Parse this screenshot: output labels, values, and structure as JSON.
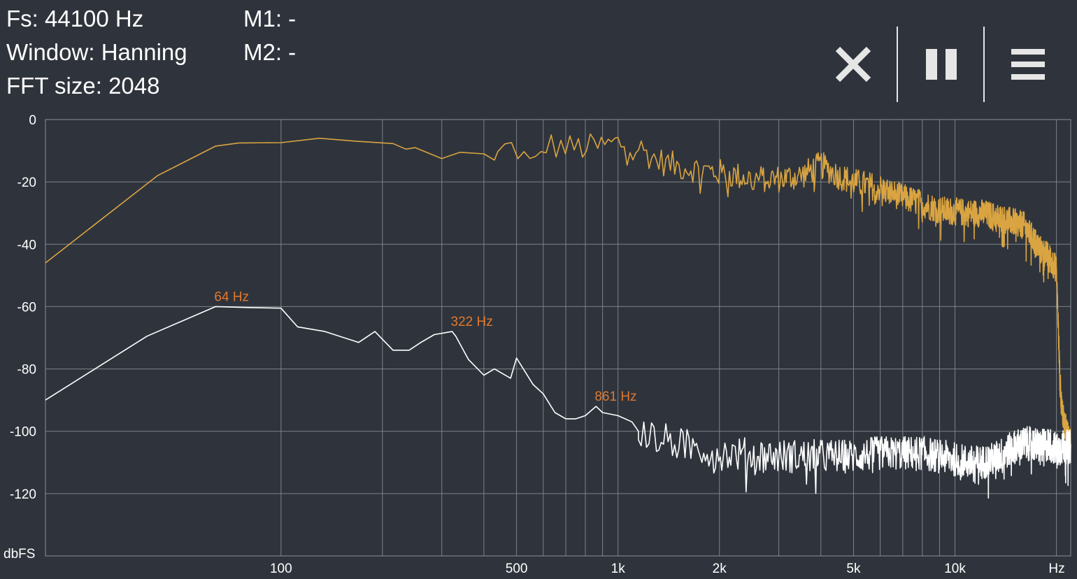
{
  "info": {
    "fs": "Fs: 44100 Hz",
    "window": "Window: Hanning",
    "fft_size": "FFT size: 2048",
    "m1": "M1: -",
    "m2": "M2: -"
  },
  "toolbar": {
    "close_icon": "close-icon",
    "pause_icon": "pause-icon",
    "menu_icon": "menu-icon"
  },
  "colors": {
    "background": "#2f343c",
    "grid": "#8a8f96",
    "trace_max": "#d9a441",
    "trace_live": "#ffffff",
    "peak_label": "#e0782e"
  },
  "chart_data": {
    "type": "line",
    "title": "",
    "xscale": "log",
    "xlim": [
      20,
      22050
    ],
    "ylim": [
      -140,
      0
    ],
    "xlabel": "Hz",
    "ylabel": "dbFS",
    "grid": true,
    "x_ticks": [
      {
        "value": 100,
        "label": "100"
      },
      {
        "value": 500,
        "label": "500"
      },
      {
        "value": 1000,
        "label": "1k"
      },
      {
        "value": 2000,
        "label": "2k"
      },
      {
        "value": 5000,
        "label": "5k"
      },
      {
        "value": 10000,
        "label": "10k"
      }
    ],
    "x_unit_label": "Hz",
    "x_gridlines": [
      100,
      200,
      300,
      400,
      500,
      600,
      700,
      800,
      900,
      1000,
      2000,
      3000,
      4000,
      5000,
      6000,
      7000,
      8000,
      9000,
      10000,
      20000
    ],
    "y_ticks": [
      0,
      -20,
      -40,
      -60,
      -80,
      -100,
      -120
    ],
    "y_unit_label": "dbFS",
    "series": [
      {
        "role": "max-hold",
        "color": "#d9a441",
        "noise_from_hz": 440,
        "points": [
          [
            20,
            -46
          ],
          [
            43,
            -18
          ],
          [
            64,
            -8.5
          ],
          [
            75,
            -7.5
          ],
          [
            100,
            -7.4
          ],
          [
            130,
            -6
          ],
          [
            170,
            -7
          ],
          [
            215,
            -7.7
          ],
          [
            235,
            -9.5
          ],
          [
            250,
            -9
          ],
          [
            300,
            -12.5
          ],
          [
            340,
            -10.5
          ],
          [
            400,
            -11
          ],
          [
            430,
            -13
          ],
          [
            460,
            -9
          ],
          [
            500,
            -9
          ],
          [
            560,
            -16
          ],
          [
            610,
            -8
          ],
          [
            700,
            -9
          ],
          [
            800,
            -9
          ],
          [
            900,
            -8.5
          ],
          [
            1000,
            -7.5
          ],
          [
            1150,
            -9
          ],
          [
            1300,
            -13
          ],
          [
            1500,
            -15
          ],
          [
            2000,
            -17
          ],
          [
            2500,
            -19
          ],
          [
            3000,
            -19
          ],
          [
            3500,
            -18
          ],
          [
            4000,
            -14.5
          ],
          [
            4500,
            -18
          ],
          [
            5000,
            -20
          ],
          [
            6000,
            -22
          ],
          [
            7000,
            -25
          ],
          [
            8000,
            -27
          ],
          [
            8500,
            -28
          ],
          [
            9000,
            -29
          ],
          [
            10000,
            -29.5
          ],
          [
            11000,
            -30
          ],
          [
            12000,
            -30
          ],
          [
            13000,
            -31
          ],
          [
            14000,
            -32
          ],
          [
            15000,
            -33
          ],
          [
            16000,
            -34
          ],
          [
            17000,
            -38
          ],
          [
            18000,
            -42
          ],
          [
            19000,
            -44
          ],
          [
            20000,
            -48
          ],
          [
            20500,
            -85
          ],
          [
            21000,
            -97
          ],
          [
            21500,
            -100
          ],
          [
            22050,
            -103
          ]
        ]
      },
      {
        "role": "live",
        "color": "#ffffff",
        "noise_from_hz": 1150,
        "points": [
          [
            20,
            -90
          ],
          [
            40,
            -69.5
          ],
          [
            64,
            -60
          ],
          [
            80,
            -60.3
          ],
          [
            100,
            -60.5
          ],
          [
            112,
            -66.5
          ],
          [
            135,
            -68
          ],
          [
            170,
            -71.5
          ],
          [
            190,
            -68
          ],
          [
            215,
            -74
          ],
          [
            240,
            -74
          ],
          [
            260,
            -71.5
          ],
          [
            285,
            -69
          ],
          [
            322,
            -68
          ],
          [
            330,
            -69.5
          ],
          [
            360,
            -77
          ],
          [
            400,
            -82
          ],
          [
            430,
            -80
          ],
          [
            480,
            -83
          ],
          [
            500,
            -76.5
          ],
          [
            560,
            -85
          ],
          [
            600,
            -88
          ],
          [
            650,
            -94
          ],
          [
            700,
            -96
          ],
          [
            750,
            -96
          ],
          [
            800,
            -95
          ],
          [
            861,
            -92
          ],
          [
            900,
            -94
          ],
          [
            1000,
            -95
          ],
          [
            1100,
            -97
          ],
          [
            1150,
            -100
          ],
          [
            1300,
            -102
          ],
          [
            1500,
            -104
          ],
          [
            2000,
            -107
          ],
          [
            3000,
            -108
          ],
          [
            4000,
            -108
          ],
          [
            5000,
            -108
          ],
          [
            6000,
            -107
          ],
          [
            7000,
            -107
          ],
          [
            8000,
            -107
          ],
          [
            9000,
            -108
          ],
          [
            10000,
            -109
          ],
          [
            11000,
            -110
          ],
          [
            12000,
            -110
          ],
          [
            13000,
            -109
          ],
          [
            14000,
            -107
          ],
          [
            15000,
            -105
          ],
          [
            16000,
            -104
          ],
          [
            17000,
            -104
          ],
          [
            18000,
            -105
          ],
          [
            19000,
            -104
          ],
          [
            20000,
            -106
          ],
          [
            21000,
            -105
          ],
          [
            22050,
            -105
          ]
        ]
      }
    ],
    "peak_labels": [
      {
        "hz": 64,
        "db": -60,
        "label": "64 Hz"
      },
      {
        "hz": 322,
        "db": -68,
        "label": "322 Hz"
      },
      {
        "hz": 861,
        "db": -92,
        "label": "861 Hz"
      }
    ]
  }
}
